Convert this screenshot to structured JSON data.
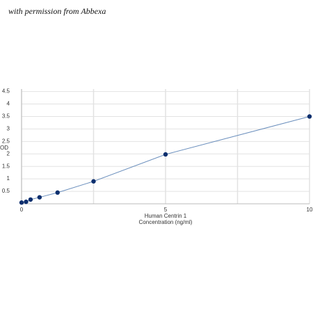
{
  "note": "with permission from Abbexa",
  "chart_data": {
    "type": "scatter",
    "x_label": [
      "Human Centrin 1",
      "Concentration (ng/ml)"
    ],
    "y_label": "OD",
    "x": [
      0,
      0.156,
      0.313,
      0.625,
      1.25,
      2.5,
      5,
      10
    ],
    "series": [
      {
        "color": "#0d2f6e",
        "line_color": "#6b8fbd",
        "values": [
          0.05,
          0.08,
          0.17,
          0.26,
          0.45,
          0.9,
          1.98,
          3.5
        ]
      }
    ],
    "xlim": [
      0,
      10
    ],
    "xticks": [
      0,
      5,
      10
    ],
    "minor_xgrid": [
      2.5,
      7.5
    ],
    "ylim": [
      0,
      4.6
    ],
    "yticks": [
      0.5,
      1,
      1.5,
      2,
      2.5,
      3,
      3.5,
      4,
      4.5
    ],
    "grid": true
  }
}
